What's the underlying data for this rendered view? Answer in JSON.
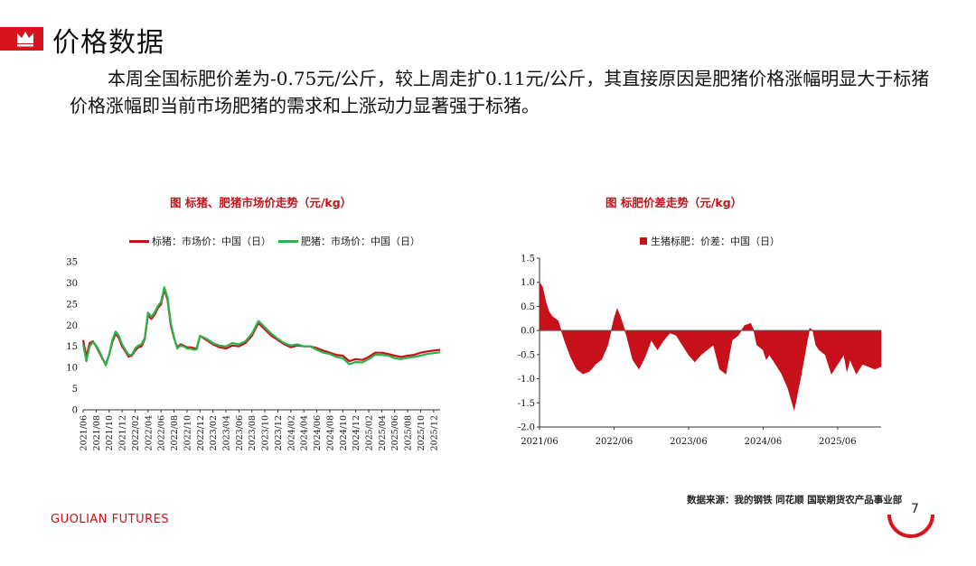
{
  "header": {
    "title": "价格数据"
  },
  "summary": "本周全国标肥价差为-0.75元/公斤，较上周走扩0.11元/公斤，其直接原因是肥猪价格涨幅明显大于标猪价格涨幅即当前市场肥猪的需求和上涨动力显著强于标猪。",
  "colors": {
    "brand": "#d7141e",
    "standard_pig": "#c8101a",
    "fat_pig": "#2db34a",
    "spread": "#c8101a"
  },
  "footer": {
    "logo": "GUOLIAN FUTURES",
    "source": "数据来源：我的钢铁  同花顺  国联期货农产品事业部",
    "page": "7"
  },
  "chart_data": [
    {
      "type": "line",
      "title": "图   标猪、肥猪市场价走势（元/kg）",
      "ylim": [
        0,
        35
      ],
      "yticks": [
        0,
        5,
        10,
        15,
        20,
        25,
        30,
        35
      ],
      "xticks": [
        "2021/06",
        "2021/08",
        "2021/10",
        "2021/12",
        "2022/02",
        "2022/04",
        "2022/06",
        "2022/08",
        "2022/10",
        "2022/12",
        "2023/02",
        "2023/04",
        "2023/06",
        "2023/08",
        "2023/10",
        "2023/12",
        "2024/02",
        "2024/04",
        "2024/06",
        "2024/08",
        "2024/10",
        "2024/12",
        "2025/02",
        "2025/04",
        "2025/06",
        "2025/08",
        "2025/10",
        "2025/12"
      ],
      "legend_position": "top",
      "x_months": [
        0,
        0.5,
        1,
        1.5,
        2,
        2.5,
        3,
        3.5,
        4,
        4.5,
        5,
        5.5,
        6,
        6.5,
        7,
        7.5,
        8,
        8.5,
        9,
        9.5,
        10,
        10.5,
        11,
        11.5,
        12,
        12.5,
        13,
        13.5,
        14,
        14.5,
        15,
        15.5,
        16,
        16.5,
        17,
        17.5,
        18,
        19,
        20,
        21,
        22,
        23,
        24,
        25,
        26,
        27,
        28,
        29,
        30,
        31,
        32,
        33,
        34,
        35,
        36,
        37,
        38,
        39,
        40,
        41,
        42,
        43,
        44,
        45,
        46,
        47,
        48,
        49,
        50,
        51,
        52,
        53,
        54,
        55
      ],
      "series": [
        {
          "name": "标猪：市场价：中国（日）",
          "values": [
            16.5,
            12.5,
            15.8,
            16.2,
            15.0,
            13.5,
            12.0,
            10.8,
            13.0,
            16.0,
            18.0,
            17.0,
            15.0,
            13.8,
            12.6,
            12.8,
            14.0,
            14.8,
            15.0,
            16.8,
            22.5,
            21.5,
            22.5,
            24.0,
            25.0,
            28.5,
            26.0,
            20.0,
            17.0,
            14.8,
            15.5,
            15.2,
            14.8,
            14.8,
            14.6,
            14.5,
            17.5,
            16.5,
            15.5,
            14.8,
            14.5,
            15.2,
            15.0,
            15.8,
            17.5,
            20.5,
            19.0,
            17.5,
            16.5,
            15.5,
            14.8,
            15.2,
            15.0,
            15.0,
            14.6,
            14.0,
            13.5,
            13.0,
            12.8,
            11.5,
            12.0,
            11.8,
            12.5,
            13.5,
            13.5,
            13.2,
            12.8,
            12.5,
            12.8,
            13.0,
            13.5,
            13.8,
            14.0,
            14.2
          ]
        },
        {
          "name": "肥猪：市场价：中国（日）",
          "values": [
            15.5,
            11.5,
            15.0,
            16.0,
            15.2,
            13.8,
            12.2,
            10.5,
            13.0,
            16.5,
            18.5,
            17.5,
            15.5,
            14.2,
            13.0,
            13.0,
            14.5,
            15.2,
            15.5,
            17.0,
            23.0,
            22.0,
            23.0,
            24.5,
            25.5,
            29.0,
            26.5,
            20.5,
            17.2,
            14.5,
            15.2,
            15.0,
            14.5,
            14.5,
            14.2,
            14.3,
            17.5,
            16.8,
            15.8,
            15.2,
            15.0,
            15.8,
            15.5,
            16.2,
            18.0,
            21.0,
            19.5,
            18.0,
            16.8,
            15.8,
            15.2,
            15.5,
            15.0,
            15.0,
            14.2,
            13.5,
            13.2,
            12.5,
            12.2,
            10.8,
            11.3,
            11.2,
            12.0,
            13.0,
            13.0,
            12.8,
            12.2,
            12.0,
            12.3,
            12.5,
            12.8,
            13.2,
            13.4,
            13.6
          ]
        }
      ]
    },
    {
      "type": "area",
      "title": "图   标肥价差走势（元/kg）",
      "ylim": [
        -2.0,
        1.5
      ],
      "yticks": [
        -2.0,
        -1.5,
        -1.0,
        -0.5,
        0.0,
        0.5,
        1.0,
        1.5
      ],
      "xticks": [
        "2021/06",
        "2022/06",
        "2023/06",
        "2024/06",
        "2025/06"
      ],
      "legend_position": "top",
      "x_months": [
        0,
        0.5,
        1,
        1.5,
        2,
        3,
        4,
        5,
        6,
        7,
        8,
        9,
        10,
        11,
        12,
        12.5,
        13,
        14,
        15,
        16,
        17,
        18,
        19,
        20,
        21,
        22,
        23,
        24,
        25,
        26,
        27,
        28,
        29,
        30,
        31,
        32,
        33,
        34,
        34.5,
        35,
        36,
        36.5,
        37,
        38,
        39,
        40,
        41,
        42,
        43,
        43.5,
        44,
        44.5,
        45,
        46,
        47,
        48,
        49,
        49.5,
        50,
        51,
        52,
        53,
        54,
        55
      ],
      "series": [
        {
          "name": "生猪标肥：价差：中国（日）",
          "values": [
            1.0,
            0.9,
            0.6,
            0.4,
            0.3,
            0.2,
            -0.2,
            -0.55,
            -0.8,
            -0.9,
            -0.85,
            -0.7,
            -0.6,
            -0.3,
            0.25,
            0.45,
            0.3,
            -0.1,
            -0.6,
            -0.8,
            -0.55,
            -0.2,
            -0.4,
            -0.2,
            -0.05,
            -0.1,
            -0.3,
            -0.5,
            -0.65,
            -0.5,
            -0.4,
            -0.3,
            -0.8,
            -0.9,
            -0.2,
            -0.1,
            0.1,
            0.15,
            0.0,
            -0.3,
            -0.4,
            -0.6,
            -0.5,
            -0.7,
            -0.9,
            -1.2,
            -1.65,
            -1.0,
            -0.3,
            0.05,
            0.0,
            -0.3,
            -0.4,
            -0.5,
            -0.9,
            -0.7,
            -0.5,
            -0.85,
            -0.6,
            -0.9,
            -0.7,
            -0.75,
            -0.8,
            -0.75
          ]
        }
      ]
    }
  ]
}
